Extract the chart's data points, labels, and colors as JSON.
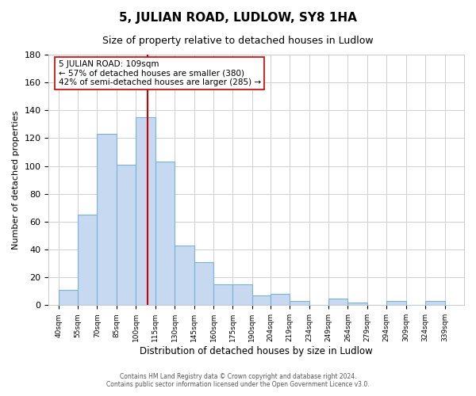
{
  "title": "5, JULIAN ROAD, LUDLOW, SY8 1HA",
  "subtitle": "Size of property relative to detached houses in Ludlow",
  "xlabel": "Distribution of detached houses by size in Ludlow",
  "ylabel": "Number of detached properties",
  "bar_left_edges": [
    40,
    55,
    70,
    85,
    100,
    115,
    130,
    145,
    160,
    175,
    190,
    204,
    219,
    234,
    249,
    264,
    279,
    294,
    309,
    324
  ],
  "bar_heights": [
    11,
    65,
    123,
    101,
    135,
    103,
    43,
    31,
    15,
    15,
    7,
    8,
    3,
    0,
    5,
    2,
    0,
    3,
    0,
    3
  ],
  "bar_widths": [
    15,
    15,
    15,
    15,
    15,
    15,
    15,
    15,
    15,
    15,
    14,
    15,
    15,
    15,
    15,
    15,
    15,
    15,
    15,
    15
  ],
  "tick_labels": [
    "40sqm",
    "55sqm",
    "70sqm",
    "85sqm",
    "100sqm",
    "115sqm",
    "130sqm",
    "145sqm",
    "160sqm",
    "175sqm",
    "190sqm",
    "204sqm",
    "219sqm",
    "234sqm",
    "249sqm",
    "264sqm",
    "279sqm",
    "294sqm",
    "309sqm",
    "324sqm",
    "339sqm"
  ],
  "tick_positions": [
    40,
    55,
    70,
    85,
    100,
    115,
    130,
    145,
    160,
    175,
    190,
    204,
    219,
    234,
    249,
    264,
    279,
    294,
    309,
    324,
    339
  ],
  "bar_color": "#c6d9f0",
  "bar_edge_color": "#7ab4d4",
  "vline_x": 109,
  "vline_color": "#cc0000",
  "annotation_title": "5 JULIAN ROAD: 109sqm",
  "annotation_line1": "← 57% of detached houses are smaller (380)",
  "annotation_line2": "42% of semi-detached houses are larger (285) →",
  "annotation_box_color": "#ffffff",
  "annotation_box_edge": "#cc0000",
  "ylim": [
    0,
    180
  ],
  "yticks": [
    0,
    20,
    40,
    60,
    80,
    100,
    120,
    140,
    160,
    180
  ],
  "footer_line1": "Contains HM Land Registry data © Crown copyright and database right 2024.",
  "footer_line2": "Contains public sector information licensed under the Open Government Licence v3.0.",
  "background_color": "#ffffff",
  "grid_color": "#d0d0d0",
  "xlim_left": 32.5,
  "xlim_right": 354
}
